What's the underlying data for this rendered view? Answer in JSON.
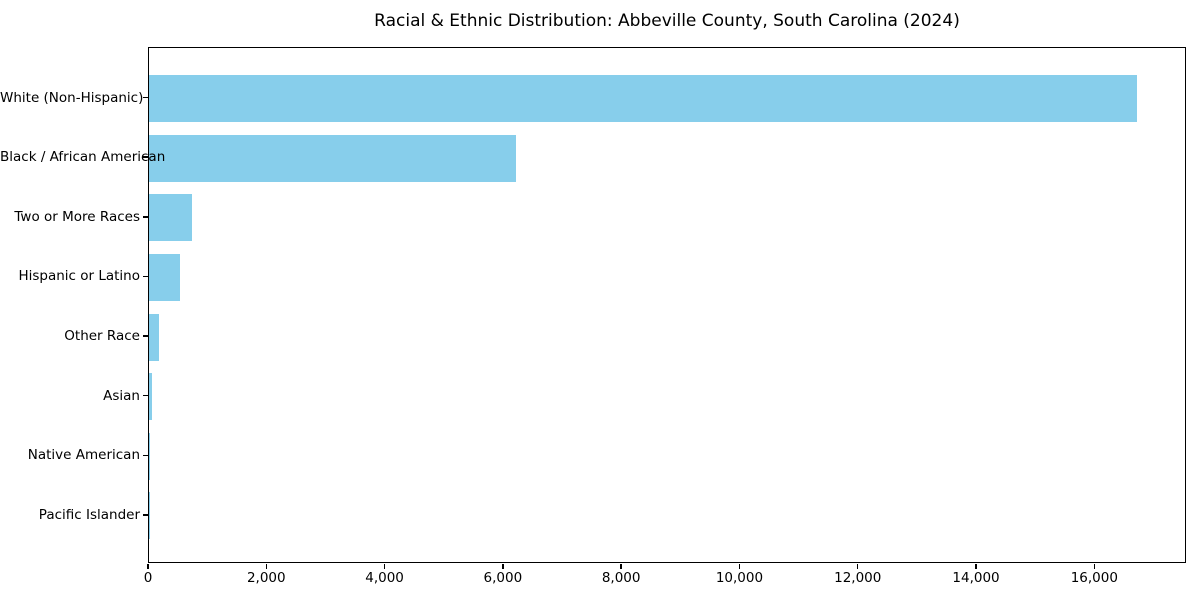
{
  "chart_data": {
    "type": "bar",
    "orientation": "horizontal",
    "title": "Racial & Ethnic Distribution: Abbeville County, South Carolina (2024)",
    "categories": [
      "White (Non-Hispanic)",
      "Black / African American",
      "Two or More Races",
      "Hispanic or Latino",
      "Other Race",
      "Asian",
      "Native American",
      "Pacific Islander"
    ],
    "values": [
      16710,
      6210,
      720,
      530,
      175,
      55,
      20,
      5
    ],
    "xlabel": "",
    "ylabel": "",
    "xlim": [
      0,
      17550
    ],
    "x_ticks": [
      0,
      2000,
      4000,
      6000,
      8000,
      10000,
      12000,
      14000,
      16000
    ],
    "x_tick_labels": [
      "0",
      "2,000",
      "4,000",
      "6,000",
      "8,000",
      "10,000",
      "12,000",
      "14,000",
      "16,000"
    ],
    "bar_color": "#87CEEB",
    "background_color": "#FFFFFF",
    "text_color": "#000000",
    "grid": false,
    "legend_position": "none"
  }
}
